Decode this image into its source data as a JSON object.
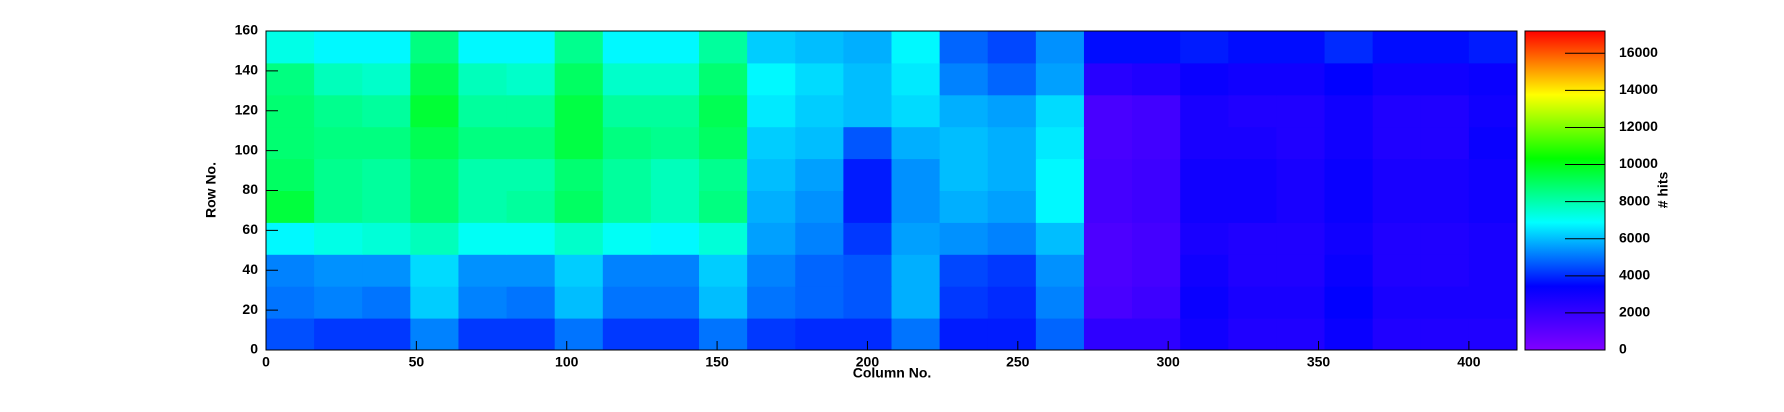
{
  "chart_data": {
    "type": "heatmap",
    "x_label": "Column No.",
    "y_label": "Row No.",
    "z_label": "# hits",
    "xbins": [
      0,
      16,
      32,
      48,
      64,
      80,
      96,
      112,
      128,
      144,
      160,
      176,
      192,
      208,
      224,
      240,
      256,
      272,
      288,
      304,
      320,
      336,
      352,
      368,
      384,
      400,
      416
    ],
    "ybins": [
      0,
      16,
      32,
      48,
      64,
      80,
      96,
      112,
      128,
      144,
      160
    ],
    "z": [
      [
        4500,
        4200,
        4200,
        5200,
        4200,
        4200,
        5000,
        4200,
        4200,
        5000,
        4200,
        4000,
        4000,
        5000,
        3800,
        3800,
        4800,
        2200,
        2200,
        3000,
        2600,
        2600,
        3200,
        2600,
        2600,
        2600
      ],
      [
        5000,
        5200,
        5000,
        6200,
        5200,
        5000,
        6000,
        5000,
        5000,
        6000,
        5000,
        4800,
        4600,
        5800,
        4200,
        4000,
        5200,
        1500,
        1800,
        3200,
        2800,
        2800,
        3400,
        2800,
        2800,
        2800
      ],
      [
        5200,
        5400,
        5400,
        6400,
        5400,
        5400,
        6200,
        5200,
        5200,
        6200,
        5200,
        4800,
        4600,
        5800,
        4400,
        4200,
        5400,
        1400,
        1600,
        3000,
        2600,
        2600,
        3200,
        2600,
        2600,
        2800
      ],
      [
        6800,
        7200,
        7400,
        7800,
        7000,
        7000,
        7600,
        7000,
        6800,
        7400,
        5600,
        5200,
        4200,
        5600,
        5400,
        5200,
        6000,
        1400,
        1600,
        2800,
        2600,
        2600,
        3000,
        2600,
        2600,
        2800
      ],
      [
        9500,
        8400,
        8200,
        8800,
        8000,
        8200,
        9000,
        8200,
        7800,
        8600,
        5800,
        5400,
        3800,
        5400,
        5800,
        5600,
        6800,
        1600,
        1800,
        3000,
        3000,
        2800,
        3200,
        2800,
        2800,
        3000
      ],
      [
        9000,
        8400,
        8200,
        8800,
        8000,
        8000,
        8800,
        8200,
        7800,
        8400,
        6000,
        5600,
        3800,
        5400,
        6000,
        5800,
        6800,
        1600,
        1800,
        3000,
        3000,
        2800,
        3200,
        2800,
        2800,
        3000
      ],
      [
        8800,
        8600,
        8600,
        9200,
        8600,
        8600,
        9400,
        8600,
        8400,
        9000,
        6200,
        6000,
        4600,
        5800,
        6000,
        5800,
        6600,
        1500,
        1700,
        2800,
        2800,
        2600,
        3000,
        2600,
        2600,
        3200
      ],
      [
        8800,
        8400,
        8200,
        9600,
        8200,
        8200,
        9400,
        8200,
        8200,
        9200,
        6600,
        6200,
        6000,
        6400,
        5800,
        5600,
        6400,
        1500,
        1700,
        2800,
        2600,
        2600,
        3000,
        2600,
        2600,
        3000
      ],
      [
        8600,
        7800,
        7600,
        9200,
        7800,
        7600,
        9000,
        7600,
        7600,
        8800,
        6800,
        6400,
        6000,
        6600,
        5200,
        4800,
        5600,
        2400,
        2600,
        3200,
        3000,
        3000,
        3400,
        3000,
        3000,
        3200
      ],
      [
        7200,
        6800,
        6800,
        8600,
        6800,
        6800,
        8400,
        6800,
        6800,
        8200,
        6200,
        6000,
        5800,
        6800,
        4800,
        4400,
        5400,
        3600,
        3600,
        3800,
        3600,
        3600,
        4000,
        3600,
        3600,
        3800
      ]
    ],
    "xlim": [
      0,
      416
    ],
    "xticks": [
      0,
      50,
      100,
      150,
      200,
      250,
      300,
      350,
      400
    ],
    "ylim": [
      0,
      160
    ],
    "yticks": [
      0,
      20,
      40,
      60,
      80,
      100,
      120,
      140,
      160
    ],
    "zlim": [
      0,
      17200
    ],
    "zticks": [
      0,
      2000,
      4000,
      6000,
      8000,
      10000,
      12000,
      14000,
      16000
    ],
    "colormap": [
      "#8000ff",
      "#0000ff",
      "#00ffff",
      "#00ff00",
      "#ffff00",
      "#ff0000"
    ]
  }
}
